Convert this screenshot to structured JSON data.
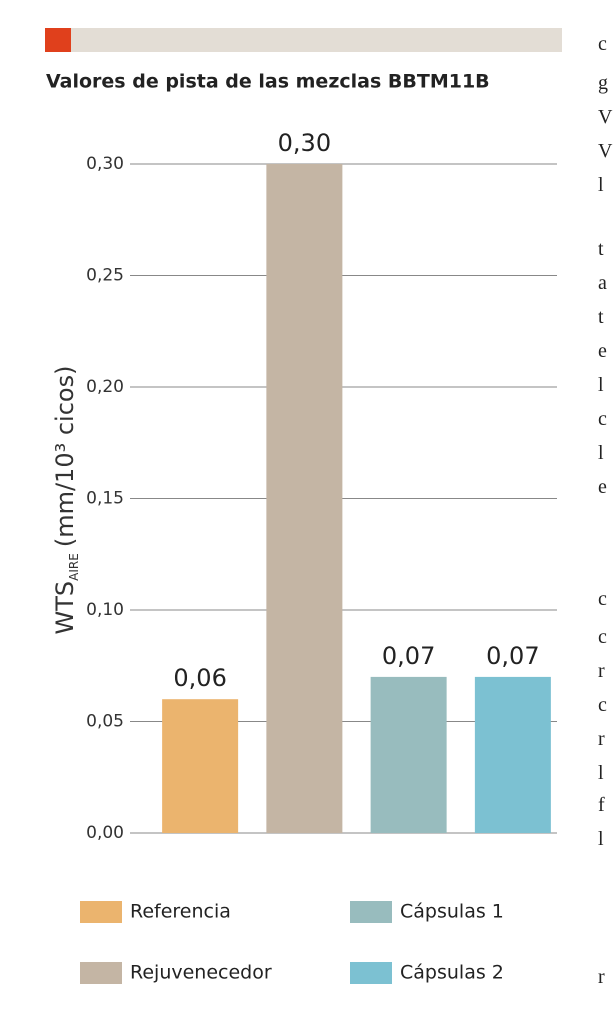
{
  "chart_data": {
    "type": "bar",
    "title": "Valores de pista de las mezclas BBTM11B",
    "y_label": {
      "main": "WTS",
      "subscript": "AIRE",
      "unit": "(mm/10³ cicos)"
    },
    "categories": [
      "Referencia",
      "Rejuvenecedor",
      "Cápsulas 1",
      "Cápsulas 2"
    ],
    "values": [
      0.06,
      0.3,
      0.07,
      0.07
    ],
    "value_labels": [
      "0,06",
      "0,30",
      "0,07",
      "0,07"
    ],
    "colors": [
      "#ebb46e",
      "#c4b5a4",
      "#98bcbe",
      "#7cc1d2"
    ],
    "ylim": [
      0,
      0.3
    ],
    "yticks": [
      {
        "value": 0,
        "label": "0,00"
      },
      {
        "value": 0.05,
        "label": "0,05"
      },
      {
        "value": 0.1,
        "label": "0,10"
      },
      {
        "value": 0.15,
        "label": "0,15"
      },
      {
        "value": 0.2,
        "label": "0,20"
      },
      {
        "value": 0.25,
        "label": "0,25"
      },
      {
        "value": 0.3,
        "label": "0,30"
      }
    ],
    "grid": true
  },
  "side_text": [
    "c",
    "g",
    "V",
    "V",
    "l",
    "t",
    "a",
    "t",
    "e",
    "l",
    "c",
    "l",
    "e",
    "c",
    "c",
    "r",
    "c",
    "r",
    "l",
    "f",
    "l",
    "r"
  ]
}
